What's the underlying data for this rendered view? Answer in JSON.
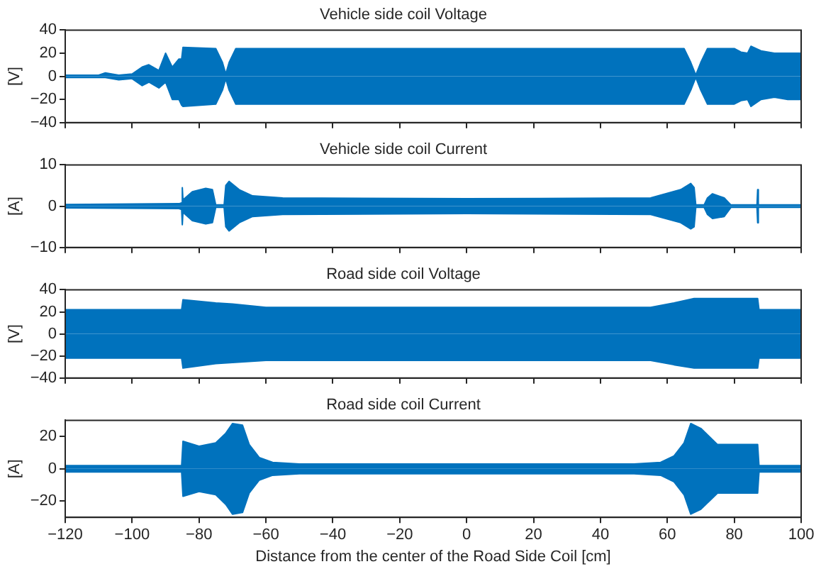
{
  "chart_data": [
    {
      "type": "area",
      "title": "Vehicle side coil Voltage",
      "ylabel": "[V]",
      "marker": "none",
      "tick_labels": "y",
      "x": [
        -120,
        -110,
        -108,
        -104,
        -100,
        -97,
        -95,
        -92,
        -90,
        -88,
        -86,
        -85.2,
        -84.8,
        -75,
        -73,
        -72,
        -71,
        -69,
        -40,
        0,
        40,
        65,
        67,
        68.5,
        70,
        72,
        80,
        82,
        84,
        85,
        88,
        92,
        96,
        100
      ],
      "xlim": [
        -120,
        100
      ],
      "xticks": [
        -120,
        -100,
        -80,
        -60,
        -40,
        -20,
        0,
        20,
        40,
        60,
        80,
        100
      ],
      "ylim": [
        -40,
        40
      ],
      "yticks": [
        -40,
        -20,
        0,
        20,
        40
      ],
      "series": [
        {
          "color": "#0072bd",
          "values": [
            1,
            1,
            3,
            1,
            2,
            8,
            10,
            5,
            20,
            8,
            15,
            15,
            25,
            24,
            12,
            2,
            12,
            24,
            24,
            24,
            24,
            24,
            12,
            1,
            12,
            24,
            24,
            21,
            20,
            26,
            22,
            20,
            20,
            20
          ]
        },
        {
          "color": "#0072bd",
          "values": [
            -1,
            -1,
            -1,
            -3,
            -2,
            -8,
            -5,
            -10,
            -5,
            -20,
            -20,
            -25,
            -26,
            -24,
            -12,
            -2,
            -12,
            -24,
            -24,
            -24,
            -24,
            -24,
            -12,
            -1,
            -12,
            -24,
            -24,
            -21,
            -20,
            -26,
            -20,
            -18,
            -20,
            -20
          ]
        }
      ]
    },
    {
      "type": "area",
      "title": "Vehicle side coil Current",
      "ylabel": "[A]",
      "marker": "none",
      "tick_labels": "y",
      "x": [
        -120,
        -86,
        -85.2,
        -85,
        -84.8,
        -82,
        -78,
        -76,
        -75,
        -72.5,
        -72,
        -71,
        -68,
        -64,
        -55,
        0,
        55,
        64,
        67,
        68,
        68.5,
        71,
        72,
        73.5,
        77,
        79,
        86.8,
        87,
        87.2,
        100
      ],
      "xlim": [
        -120,
        100
      ],
      "xticks": [
        -120,
        -100,
        -80,
        -60,
        -40,
        -20,
        0,
        20,
        40,
        60,
        80,
        100
      ],
      "ylim": [
        -10,
        10
      ],
      "yticks": [
        -10,
        0,
        10
      ],
      "series": [
        {
          "color": "#0072bd",
          "values": [
            0.4,
            0.6,
            0.8,
            4.5,
            1.5,
            3.5,
            4.3,
            4,
            0.3,
            0.3,
            5,
            6,
            4,
            2.5,
            2,
            1.8,
            2,
            4,
            5.5,
            4.5,
            0.3,
            0.3,
            2,
            3,
            2,
            0.3,
            0.3,
            4,
            0.3,
            0.3
          ]
        },
        {
          "color": "#0072bd",
          "values": [
            -0.4,
            -0.6,
            -0.8,
            -4.5,
            -1.5,
            -3.5,
            -4.3,
            -4,
            -0.3,
            -0.3,
            -5,
            -6,
            -4,
            -2.5,
            -2,
            -1.8,
            -2,
            -4,
            -5.5,
            -5,
            -0.3,
            -0.3,
            -2,
            -3,
            -2.5,
            -0.3,
            -0.3,
            -4,
            -0.3,
            -0.3
          ]
        }
      ]
    },
    {
      "type": "area",
      "title": "Road side coil Voltage",
      "ylabel": "[V]",
      "marker": "none",
      "tick_labels": "y",
      "x": [
        -120,
        -85.2,
        -84.8,
        -75,
        -70,
        -60,
        0,
        55,
        62,
        68,
        87,
        87.4,
        100
      ],
      "xlim": [
        -120,
        100
      ],
      "xticks": [
        -120,
        -100,
        -80,
        -60,
        -40,
        -20,
        0,
        20,
        40,
        60,
        80,
        100
      ],
      "ylim": [
        -40,
        40
      ],
      "yticks": [
        -40,
        -20,
        0,
        20,
        40
      ],
      "series": [
        {
          "color": "#0072bd",
          "values": [
            22,
            22,
            31,
            28,
            27,
            24,
            24,
            24,
            28,
            32,
            32,
            22,
            22
          ]
        },
        {
          "color": "#0072bd",
          "values": [
            -22,
            -22,
            -31,
            -27,
            -26,
            -24,
            -24,
            -24,
            -28,
            -31,
            -31,
            -22,
            -22
          ]
        }
      ]
    },
    {
      "type": "area",
      "title": "Road side coil Current",
      "xlabel": "Distance from the center of the Road Side Coil [cm]",
      "ylabel": "[A]",
      "marker": "none",
      "x": [
        -120,
        -85.2,
        -84.8,
        -80,
        -75,
        -72,
        -70,
        -67,
        -65,
        -62,
        -58,
        -50,
        0,
        50,
        58,
        62,
        65,
        67,
        70,
        75,
        87,
        87.4,
        100
      ],
      "xlim": [
        -120,
        100
      ],
      "xticks": [
        -120,
        -100,
        -80,
        -60,
        -40,
        -20,
        0,
        20,
        40,
        60,
        80,
        100
      ],
      "ylim": [
        -30,
        30
      ],
      "yticks": [
        -20,
        0,
        20
      ],
      "series": [
        {
          "color": "#0072bd",
          "values": [
            2,
            2,
            17,
            14,
            16,
            22,
            28,
            27,
            15,
            7,
            4,
            3,
            3,
            3,
            4,
            8,
            16,
            28,
            25,
            15,
            15,
            2,
            2
          ]
        },
        {
          "color": "#0072bd",
          "values": [
            -2,
            -2,
            -17,
            -14,
            -16,
            -22,
            -28,
            -27,
            -15,
            -7,
            -4,
            -3,
            -3,
            -3,
            -4,
            -8,
            -16,
            -28,
            -25,
            -15,
            -15,
            -2,
            -2
          ]
        }
      ]
    }
  ]
}
